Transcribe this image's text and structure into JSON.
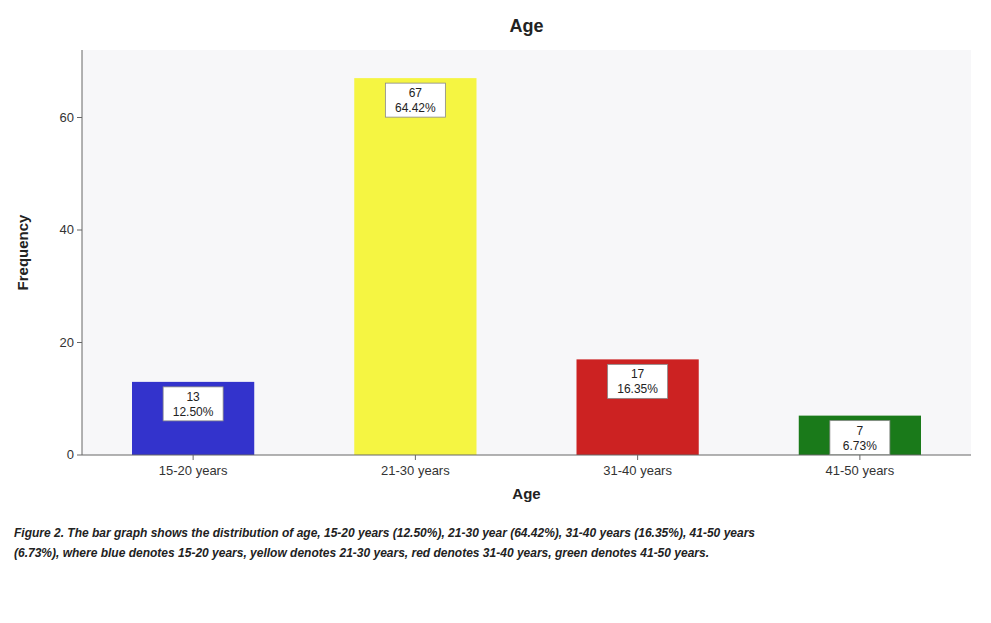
{
  "chart_data": {
    "type": "bar",
    "title": "Age",
    "x_label": "Age",
    "y_label": "Frequency",
    "categories": [
      "15-20 years",
      "21-30 years",
      "31-40 years",
      "41-50 years"
    ],
    "values": [
      13,
      67,
      17,
      7
    ],
    "percentages": [
      {
        "value": 12.5,
        "label": "12.50%"
      },
      {
        "value": 64.42,
        "label": "64.42%"
      },
      {
        "value": 16.35,
        "label": "16.35%"
      },
      {
        "value": 6.73,
        "label": "6.73%"
      }
    ],
    "colors": [
      "#3333cc",
      "#f5f542",
      "#cc2222",
      "#1a7a1a"
    ],
    "ylim": [
      0,
      72
    ],
    "yticks": [
      0,
      20,
      40,
      60
    ],
    "grid": false,
    "data_labels": true,
    "caption": [
      "Figure 2. The bar graph shows the distribution of age, 15-20 years (12.50%), 21-30 year (64.42%), 31-40 years (16.35%), 41-50 years",
      "(6.73%), where blue denotes 15-20 years, yellow denotes 21-30 years, red denotes 31-40 years, green denotes 41-50 years."
    ]
  }
}
